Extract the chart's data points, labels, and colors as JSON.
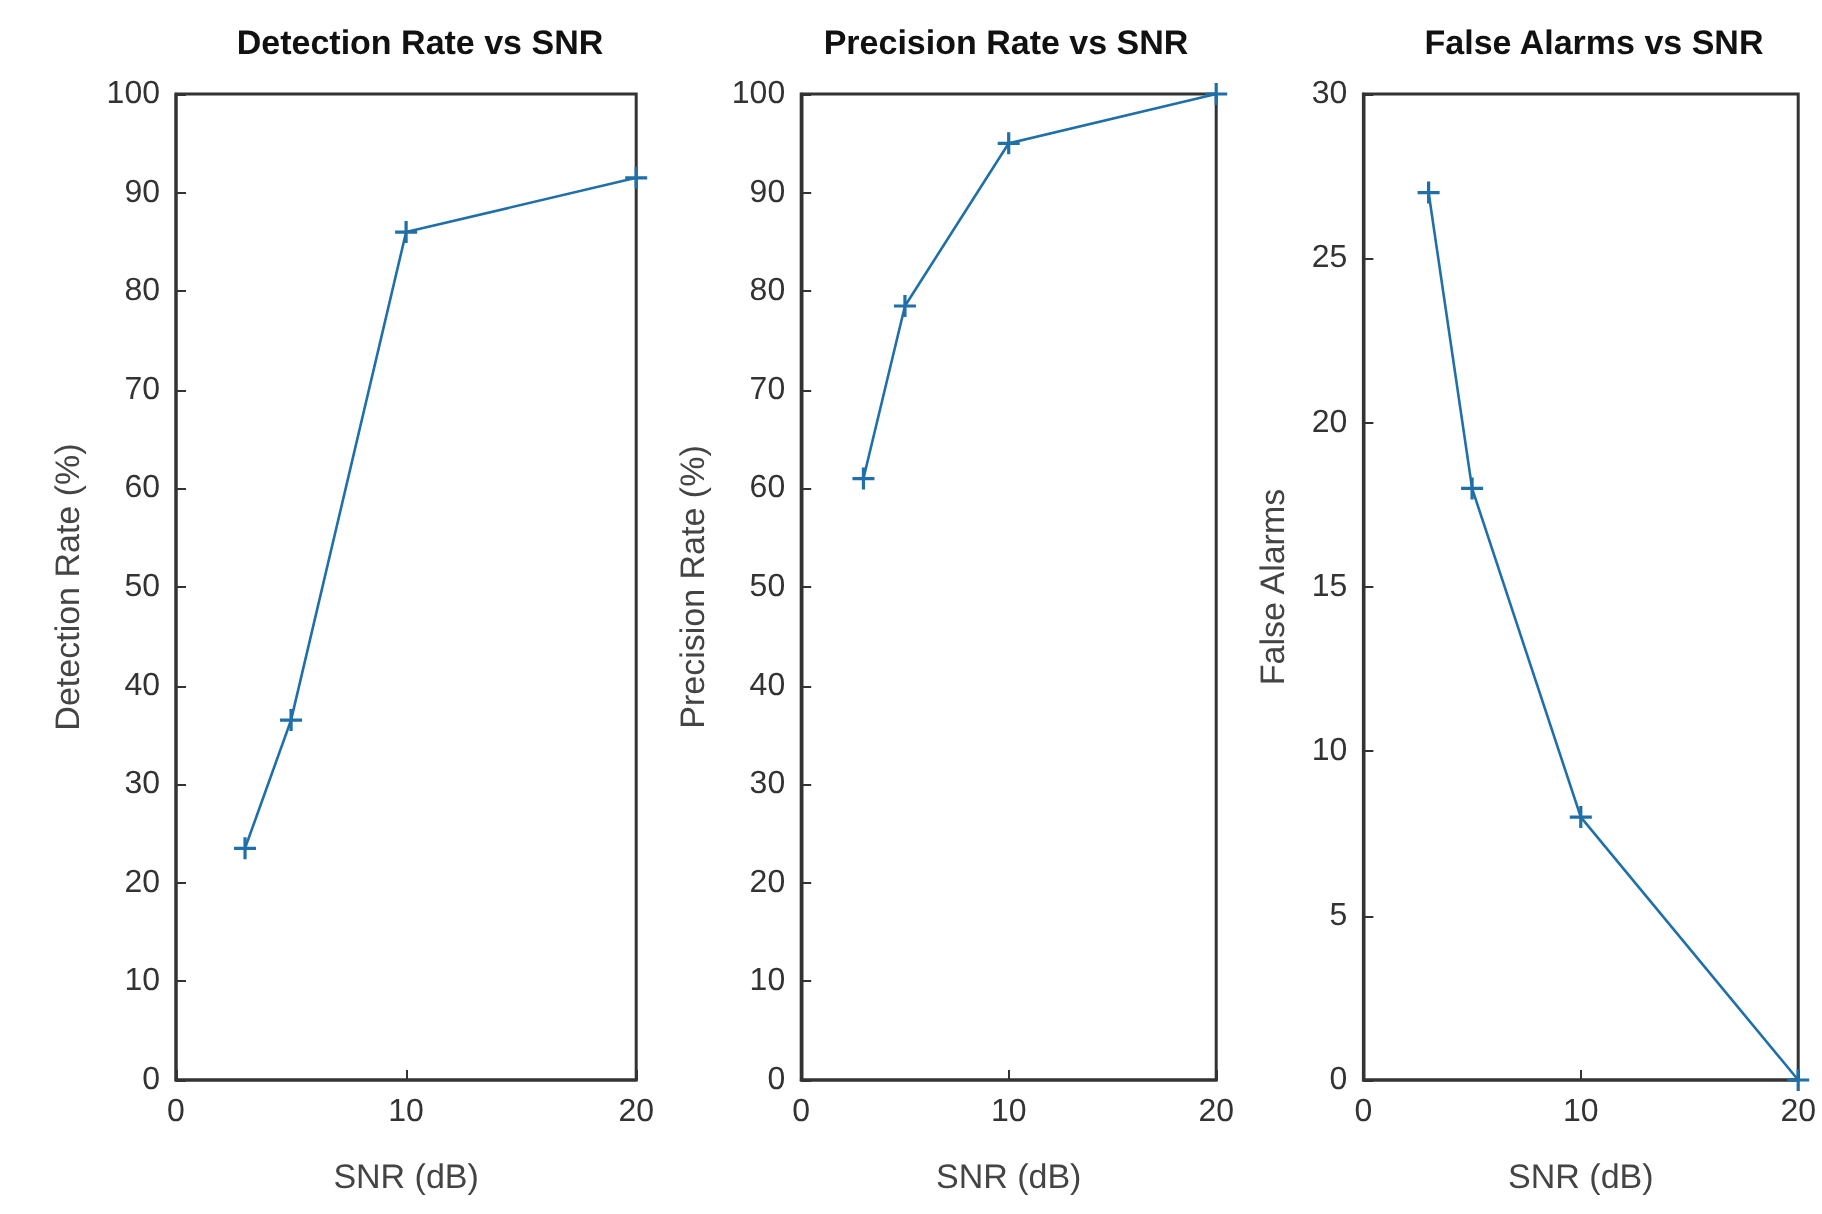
{
  "chart_data": [
    {
      "type": "line",
      "title": "Detection Rate vs SNR",
      "xlabel": "SNR (dB)",
      "ylabel": "Detection Rate (%)",
      "x": [
        3,
        5,
        10,
        20
      ],
      "series": [
        {
          "color": "#1f6fa8",
          "values": [
            23.5,
            36.5,
            86,
            91.5
          ]
        }
      ],
      "xlim": [
        0,
        20
      ],
      "xticks": [
        0,
        10,
        20
      ],
      "ylim": [
        0,
        100
      ],
      "yticks": [
        0,
        10,
        20,
        30,
        40,
        50,
        60,
        70,
        80,
        90,
        100
      ],
      "marker": "cross",
      "line_style": "solid"
    },
    {
      "type": "line",
      "title": "Precision Rate vs SNR",
      "xlabel": "SNR (dB)",
      "ylabel": "Precision Rate (%)",
      "x": [
        3,
        5,
        10,
        20
      ],
      "series": [
        {
          "color": "#1f6fa8",
          "values": [
            61,
            78.5,
            95,
            100
          ]
        }
      ],
      "xlim": [
        0,
        20
      ],
      "xticks": [
        0,
        10,
        20
      ],
      "ylim": [
        0,
        100
      ],
      "yticks": [
        0,
        10,
        20,
        30,
        40,
        50,
        60,
        70,
        80,
        90,
        100
      ],
      "marker": "cross",
      "line_style": "solid"
    },
    {
      "type": "line",
      "title": "False Alarms vs SNR",
      "xlabel": "SNR (dB)",
      "ylabel": "False Alarms",
      "x": [
        3,
        5,
        10,
        20
      ],
      "series": [
        {
          "color": "#1f6fa8",
          "values": [
            27,
            18,
            8,
            0
          ]
        }
      ],
      "xlim": [
        0,
        20
      ],
      "xticks": [
        0,
        10,
        20
      ],
      "ylim": [
        0,
        30
      ],
      "yticks": [
        0,
        5,
        10,
        15,
        20,
        25,
        30
      ],
      "marker": "cross",
      "line_style": "solid"
    }
  ]
}
